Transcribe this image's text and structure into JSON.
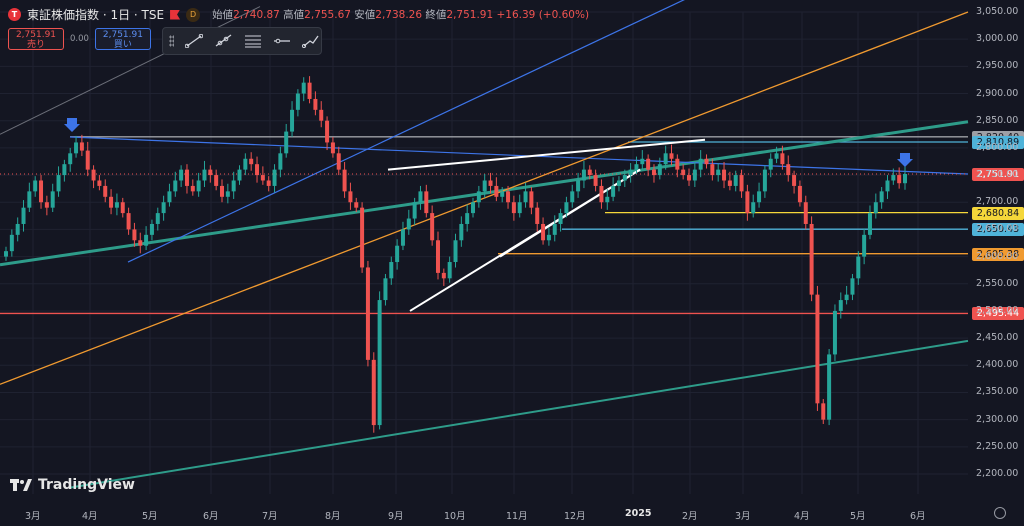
{
  "header": {
    "logo_letter": "T",
    "symbol_title": "東証株価指数 · 1日 · TSE",
    "badge_letter": "D",
    "ohlc": [
      {
        "label": "始値",
        "value": "2,740.87"
      },
      {
        "label": "高値",
        "value": "2,755.67"
      },
      {
        "label": "安値",
        "value": "2,738.26"
      },
      {
        "label": "終値",
        "value": "2,751.91"
      },
      {
        "label": "",
        "value": "+16.39 (+0.60%)"
      }
    ]
  },
  "trade": {
    "sell_price": "2,751.91",
    "sell_label": "売り",
    "spread": "0.00",
    "buy_price": "2,751.91",
    "buy_label": "買い"
  },
  "toolbar": {
    "tools": [
      "trend-line-icon",
      "ray-icon",
      "fib-retracement-icon",
      "horizontal-line-icon",
      "path-icon"
    ]
  },
  "watermark": "TradingView",
  "colors": {
    "background": "#141622",
    "up": "#26a69a",
    "down": "#ef5350",
    "accent_blue": "#3d74e8"
  },
  "chart_data": {
    "type": "candlestick",
    "price_axis": [
      "3,050.00",
      "3,000.00",
      "2,950.00",
      "2,900.00",
      "2,850.00",
      "2,800.00",
      "2,750.00",
      "2,700.00",
      "2,650.00",
      "2,600.00",
      "2,550.00",
      "2,500.00",
      "2,450.00",
      "2,400.00",
      "2,350.00",
      "2,300.00",
      "2,250.00",
      "2,200.00"
    ],
    "ylim": [
      2175,
      3060
    ],
    "time_axis": [
      "3月",
      "4月",
      "5月",
      "6月",
      "7月",
      "8月",
      "9月",
      "10月",
      "11月",
      "12月",
      "2025",
      "2月",
      "3月",
      "4月",
      "5月",
      "6月"
    ],
    "price_tags": [
      {
        "value": "2,820.40",
        "price": 2820.4,
        "bg": "#9ea0a6",
        "fg": "#141622"
      },
      {
        "value": "2,810.89",
        "price": 2810.89,
        "bg": "#4fb3d9",
        "fg": "#141622"
      },
      {
        "value": "2,751.91",
        "price": 2751.91,
        "bg": "#ef5350",
        "fg": "#ffffff"
      },
      {
        "value": "2,680.84",
        "price": 2680.84,
        "bg": "#f5d73a",
        "fg": "#141622"
      },
      {
        "value": "2,650.43",
        "price": 2650.43,
        "bg": "#4fb3d9",
        "fg": "#141622"
      },
      {
        "value": "2,605.38",
        "price": 2605.38,
        "bg": "#f09a30",
        "fg": "#141622"
      },
      {
        "value": "2,495.44",
        "price": 2495.44,
        "bg": "#ef5350",
        "fg": "#ffffff"
      }
    ],
    "horizontal_levels": [
      {
        "price": 2820.4,
        "color": "#9ea0a6",
        "from": "4月"
      },
      {
        "price": 2810.89,
        "color": "#4fb3d9",
        "from": "12月"
      },
      {
        "price": 2680.84,
        "color": "#f5d73a",
        "from": "12月"
      },
      {
        "price": 2650.43,
        "color": "#4fb3d9",
        "from": "12月"
      },
      {
        "price": 2605.38,
        "color": "#f09a30",
        "from": "11月"
      },
      {
        "price": 2495.44,
        "color": "#ef5350",
        "from": "3月"
      }
    ],
    "trend_lines": [
      {
        "color": "#2e9c8a",
        "from_price": 2585,
        "to_price": 2848
      },
      {
        "color": "#3d74e8",
        "from_price": 2820,
        "to_price": 2752
      },
      {
        "color": "#f09a30",
        "from_price": 2365,
        "to_price": 3050
      },
      {
        "color": "#3d74e8",
        "from_price": 2590,
        "to_price": 3082
      },
      {
        "color": "#2e9c8a",
        "from_price": 2175,
        "to_price": 2445
      },
      {
        "color": "#ffffff",
        "from_price": 2760,
        "to_price": 2815
      },
      {
        "color": "#ffffff",
        "from_price": 2500,
        "to_price": 2760
      },
      {
        "color": "#ffffff",
        "from_price": 2600,
        "to_price": 2760
      },
      {
        "color": "#6b6e78",
        "from_price": 2825,
        "to_price": 3060
      }
    ],
    "series": [
      {
        "name": "東証株価指数",
        "closes": [
          2610,
          2640,
          2660,
          2690,
          2720,
          2740,
          2700,
          2690,
          2720,
          2750,
          2770,
          2790,
          2810,
          2795,
          2760,
          2740,
          2730,
          2710,
          2690,
          2700,
          2680,
          2650,
          2630,
          2620,
          2640,
          2660,
          2680,
          2700,
          2720,
          2740,
          2760,
          2730,
          2720,
          2740,
          2760,
          2750,
          2730,
          2710,
          2720,
          2740,
          2760,
          2780,
          2770,
          2750,
          2740,
          2730,
          2760,
          2790,
          2830,
          2870,
          2900,
          2920,
          2890,
          2870,
          2850,
          2810,
          2790,
          2760,
          2720,
          2700,
          2690,
          2580,
          2410,
          2290,
          2520,
          2560,
          2590,
          2620,
          2650,
          2670,
          2700,
          2720,
          2680,
          2630,
          2570,
          2560,
          2590,
          2630,
          2660,
          2680,
          2700,
          2720,
          2740,
          2730,
          2710,
          2720,
          2700,
          2680,
          2700,
          2720,
          2690,
          2660,
          2630,
          2640,
          2660,
          2680,
          2700,
          2720,
          2740,
          2760,
          2750,
          2730,
          2700,
          2710,
          2730,
          2740,
          2750,
          2760,
          2770,
          2780,
          2760,
          2750,
          2770,
          2790,
          2780,
          2760,
          2750,
          2740,
          2760,
          2780,
          2770,
          2750,
          2760,
          2740,
          2730,
          2750,
          2720,
          2680,
          2700,
          2720,
          2760,
          2780,
          2790,
          2770,
          2750,
          2730,
          2700,
          2660,
          2530,
          2330,
          2300,
          2420,
          2500,
          2520,
          2530,
          2560,
          2600,
          2640,
          2680,
          2700,
          2720,
          2740,
          2750,
          2735,
          2752
        ]
      }
    ],
    "arrows": [
      {
        "near": "4月",
        "color": "#3d74e8"
      },
      {
        "near": "6月",
        "color": "#3d74e8"
      }
    ]
  }
}
